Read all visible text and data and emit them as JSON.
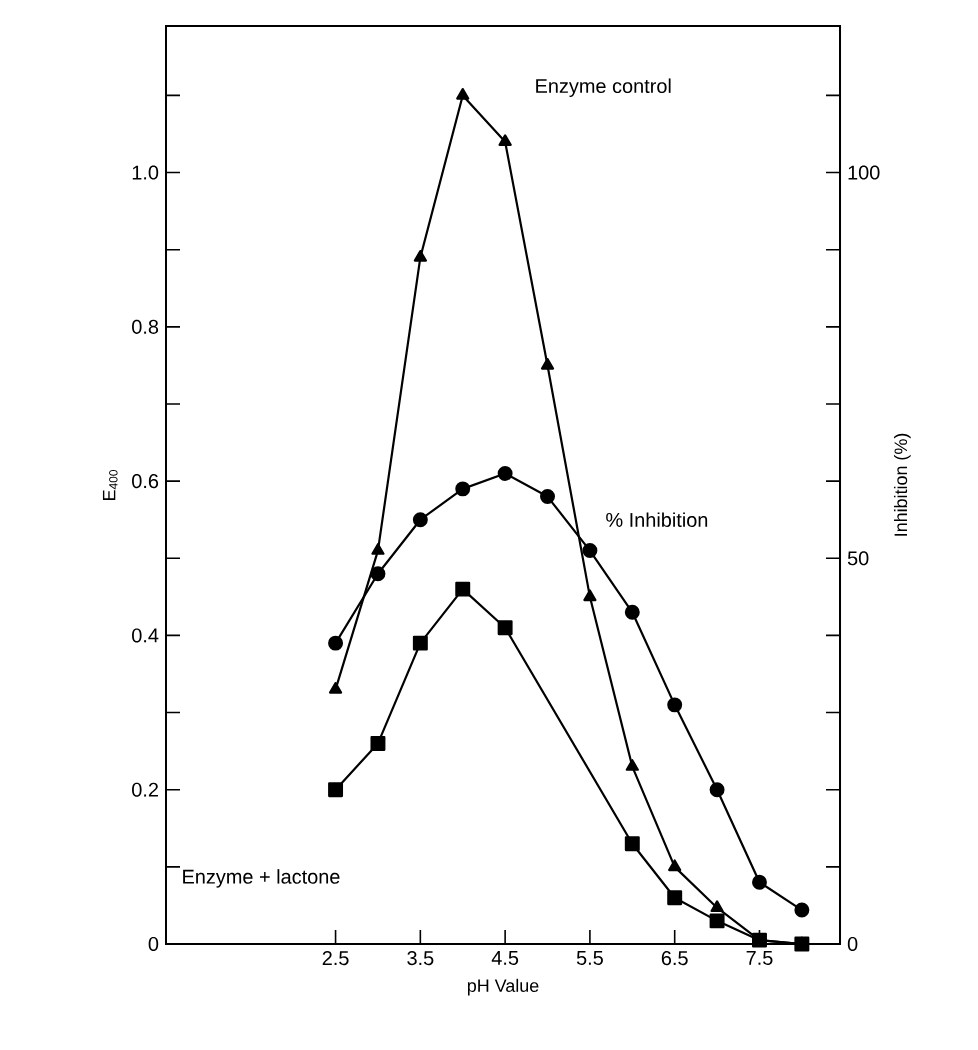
{
  "chart_data": {
    "type": "line",
    "xlabel": "pH Value",
    "ylabel": "E$_{400}$",
    "y2label": "Inhibition (%)",
    "xlim": [
      0.5,
      8.45
    ],
    "ylim": [
      0,
      1.19
    ],
    "y2lim": [
      0,
      119
    ],
    "xticks": [
      2.5,
      3.5,
      4.5,
      5.5,
      6.5,
      7.5
    ],
    "yticks": [
      0,
      {
        "value": 0.1,
        "label": null
      },
      0.2,
      {
        "value": 0.3,
        "label": null
      },
      0.4,
      {
        "value": 0.5,
        "label": null
      },
      0.6,
      {
        "value": 0.7,
        "label": null
      },
      0.8,
      {
        "value": 0.9,
        "label": null
      },
      {
        "value": 1.0,
        "label": "1.0"
      },
      {
        "value": 1.1,
        "label": null
      }
    ],
    "y2ticks": [
      0,
      {
        "value": 10,
        "label": null
      },
      {
        "value": 20,
        "label": null
      },
      {
        "value": 30,
        "label": null
      },
      {
        "value": 40,
        "label": null
      },
      50,
      {
        "value": 60,
        "label": null
      },
      {
        "value": 70,
        "label": null
      },
      {
        "value": 80,
        "label": null
      },
      {
        "value": 90,
        "label": null
      },
      100,
      {
        "value": 110,
        "label": null
      }
    ],
    "series": [
      {
        "name": "Enzyme control",
        "color": "#000000",
        "marker": "triangle",
        "x": [
          2.5,
          3.0,
          3.5,
          4.0,
          4.5,
          5.0,
          5.5,
          6.0,
          6.5,
          7.0,
          7.5,
          8.0
        ],
        "values": [
          0.33,
          0.51,
          0.89,
          1.1,
          1.04,
          0.75,
          0.45,
          0.23,
          0.1,
          0.047,
          0.005,
          0
        ]
      },
      {
        "name": "% Inhibition",
        "color": "#000000",
        "marker": "circle",
        "axis": "y2",
        "x": [
          2.5,
          3.0,
          3.5,
          4.0,
          4.5,
          5.0,
          5.5,
          6.0,
          6.5,
          7.0,
          7.5,
          8.0
        ],
        "values": [
          39,
          48,
          55,
          59,
          61,
          58,
          51,
          43,
          31,
          20,
          8,
          4.4
        ]
      },
      {
        "name": "Enzyme + lactone",
        "color": "#000000",
        "marker": "square",
        "x": [
          2.5,
          3.0,
          3.5,
          4.0,
          4.5,
          6.0,
          6.5,
          7.0,
          7.5,
          8.0
        ],
        "values": [
          0.2,
          0.26,
          0.39,
          0.46,
          0.41,
          0.13,
          0.06,
          0.03,
          0.005,
          0
        ]
      }
    ]
  }
}
